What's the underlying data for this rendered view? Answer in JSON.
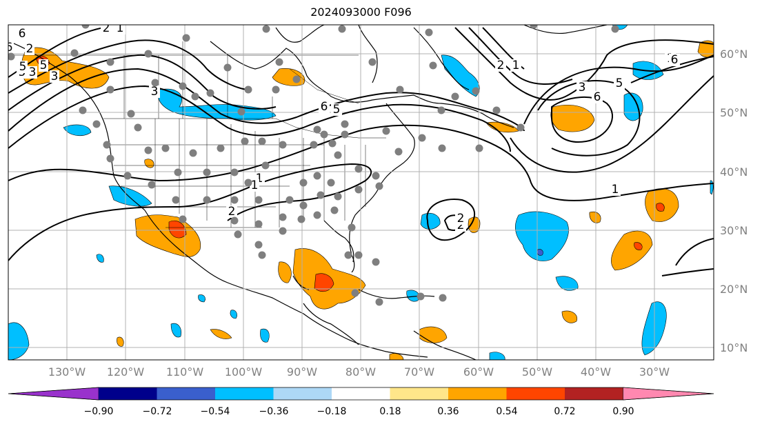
{
  "title": "2024093000 F096",
  "map": {
    "lat_labels": [
      "60°N",
      "50°N",
      "40°N",
      "30°N",
      "20°N",
      "10°N"
    ],
    "lon_labels": [
      "130°W",
      "120°W",
      "110°W",
      "100°W",
      "90°W",
      "80°W",
      "70°W",
      "60°W",
      "50°W",
      "40°W",
      "30°W"
    ],
    "contour_labels": [
      "6",
      "5",
      "3",
      "1",
      "2",
      "6",
      "5",
      "2",
      "1",
      "6",
      "5",
      "3",
      "1",
      "2",
      "1",
      "2",
      "2",
      "5",
      "3",
      "6",
      "1",
      "6",
      "5",
      "3",
      "2",
      "1"
    ]
  },
  "colorbar": {
    "ticks": [
      "−0.90",
      "−0.72",
      "−0.54",
      "−0.36",
      "−0.18",
      "0.18",
      "0.36",
      "0.54",
      "0.72",
      "0.90"
    ],
    "colors": [
      "#9932cc",
      "#00008b",
      "#3a5fcd",
      "#00bfff",
      "#add8f6",
      "#ffffff",
      "#ffe68a",
      "#ffa500",
      "#ff4500",
      "#b22222",
      "#ff88b0"
    ]
  },
  "colors": {
    "station": "#7f7f7f",
    "land_outline": "#000000",
    "grid": "#b0b0b0"
  }
}
